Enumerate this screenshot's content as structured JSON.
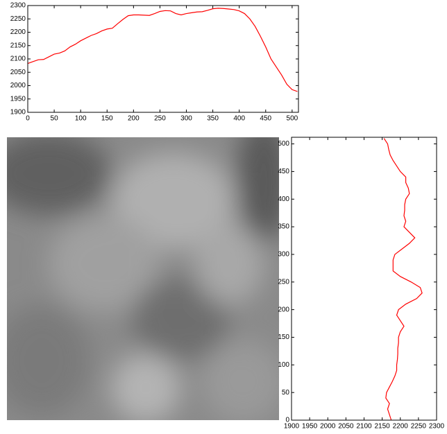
{
  "chart_data": [
    {
      "type": "line",
      "orientation": "horizontal",
      "x": [
        0,
        10,
        20,
        30,
        40,
        50,
        60,
        70,
        80,
        90,
        100,
        110,
        120,
        130,
        140,
        150,
        160,
        170,
        180,
        190,
        200,
        210,
        220,
        230,
        240,
        250,
        260,
        270,
        280,
        290,
        300,
        310,
        320,
        330,
        340,
        350,
        360,
        370,
        380,
        390,
        400,
        410,
        420,
        430,
        440,
        450,
        460,
        470,
        480,
        490,
        500,
        510
      ],
      "series": [
        {
          "color": "#ff0000",
          "values": [
            2083,
            2090,
            2097,
            2098,
            2108,
            2118,
            2122,
            2130,
            2145,
            2155,
            2168,
            2178,
            2188,
            2195,
            2205,
            2212,
            2215,
            2232,
            2248,
            2262,
            2265,
            2265,
            2264,
            2263,
            2270,
            2278,
            2281,
            2280,
            2270,
            2265,
            2270,
            2273,
            2276,
            2277,
            2282,
            2288,
            2290,
            2289,
            2287,
            2285,
            2280,
            2270,
            2250,
            2222,
            2185,
            2145,
            2100,
            2070,
            2040,
            2005,
            1985,
            1978
          ]
        }
      ],
      "xlim": [
        0,
        512
      ],
      "xticks": [
        0,
        50,
        100,
        150,
        200,
        250,
        300,
        350,
        400,
        450,
        500
      ],
      "ylim": [
        1900,
        2300
      ],
      "yticks": [
        1900,
        1950,
        2000,
        2050,
        2100,
        2150,
        2200,
        2250,
        2300
      ]
    },
    {
      "type": "line",
      "orientation": "vertical",
      "y": [
        0,
        10,
        20,
        30,
        40,
        50,
        60,
        70,
        80,
        90,
        100,
        110,
        120,
        130,
        140,
        150,
        160,
        170,
        180,
        190,
        200,
        210,
        220,
        230,
        240,
        250,
        260,
        270,
        280,
        290,
        300,
        310,
        320,
        330,
        340,
        350,
        360,
        370,
        380,
        390,
        400,
        410,
        420,
        430,
        440,
        450,
        460,
        470,
        480,
        490,
        500,
        510
      ],
      "series": [
        {
          "color": "#ff0000",
          "values": [
            2175,
            2170,
            2165,
            2170,
            2160,
            2162,
            2170,
            2178,
            2185,
            2190,
            2190,
            2192,
            2193,
            2193,
            2195,
            2195,
            2200,
            2210,
            2200,
            2190,
            2195,
            2215,
            2245,
            2260,
            2255,
            2230,
            2200,
            2180,
            2180,
            2180,
            2185,
            2205,
            2225,
            2240,
            2225,
            2210,
            2215,
            2210,
            2212,
            2212,
            2215,
            2225,
            2222,
            2215,
            2215,
            2200,
            2190,
            2180,
            2172,
            2168,
            2165,
            2155
          ]
        }
      ],
      "xlim": [
        1900,
        2300
      ],
      "xticks": [
        1900,
        1950,
        2000,
        2050,
        2100,
        2150,
        2200,
        2250,
        2300
      ],
      "ylim": [
        0,
        512
      ],
      "yticks": [
        0,
        50,
        100,
        150,
        200,
        250,
        300,
        350,
        400,
        450,
        500
      ]
    }
  ]
}
